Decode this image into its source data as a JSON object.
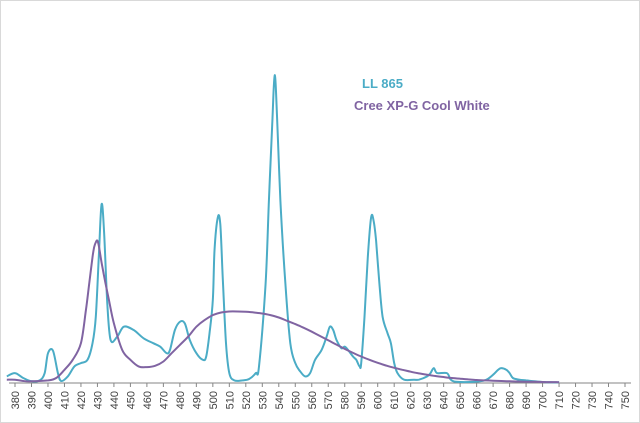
{
  "chart_data": {
    "type": "line",
    "title": "",
    "xlabel": "",
    "ylabel": "",
    "x": [
      380,
      390,
      400,
      410,
      420,
      430,
      440,
      450,
      460,
      470,
      480,
      490,
      500,
      510,
      520,
      530,
      540,
      550,
      560,
      570,
      580,
      590,
      600,
      610,
      620,
      630,
      640,
      650,
      660,
      670,
      680,
      690,
      700,
      710,
      720,
      730,
      740,
      750
    ],
    "xlim": [
      380,
      750
    ],
    "ylim": [
      0,
      100
    ],
    "grid": false,
    "legend_position": "top-center",
    "series": [
      {
        "name": "LL 865",
        "color": "#4bacc6",
        "points": [
          [
            375,
            2
          ],
          [
            380,
            3
          ],
          [
            385,
            1.5
          ],
          [
            390,
            0.5
          ],
          [
            395,
            0.8
          ],
          [
            398,
            3
          ],
          [
            400,
            9
          ],
          [
            403,
            9.8
          ],
          [
            406,
            3
          ],
          [
            408,
            0.6
          ],
          [
            412,
            2
          ],
          [
            416,
            5
          ],
          [
            420,
            6
          ],
          [
            424,
            7
          ],
          [
            427,
            12
          ],
          [
            429,
            20
          ],
          [
            431,
            40
          ],
          [
            432.5,
            54
          ],
          [
            434,
            46
          ],
          [
            436,
            24
          ],
          [
            438,
            13
          ],
          [
            442,
            14
          ],
          [
            446,
            17
          ],
          [
            452,
            16
          ],
          [
            458,
            13.5
          ],
          [
            464,
            12
          ],
          [
            468,
            11
          ],
          [
            472,
            9
          ],
          [
            474,
            10
          ],
          [
            477,
            16
          ],
          [
            480,
            18.5
          ],
          [
            483,
            18
          ],
          [
            486,
            13
          ],
          [
            490,
            9
          ],
          [
            494,
            7
          ],
          [
            496,
            8
          ],
          [
            498,
            15
          ],
          [
            500,
            25
          ],
          [
            501,
            40
          ],
          [
            503,
            50
          ],
          [
            504.5,
            48
          ],
          [
            506,
            32
          ],
          [
            508,
            12
          ],
          [
            510,
            3
          ],
          [
            513,
            0.8
          ],
          [
            518,
            0.8
          ],
          [
            522,
            1.2
          ],
          [
            526,
            3
          ],
          [
            528,
            5
          ],
          [
            532,
            30
          ],
          [
            534,
            55
          ],
          [
            536,
            78
          ],
          [
            537.5,
            93
          ],
          [
            539,
            80
          ],
          [
            541,
            55
          ],
          [
            544,
            30
          ],
          [
            547,
            12
          ],
          [
            550,
            6
          ],
          [
            553,
            3.5
          ],
          [
            556,
            2
          ],
          [
            559,
            3
          ],
          [
            562,
            7
          ],
          [
            566,
            10
          ],
          [
            569,
            14
          ],
          [
            571,
            17
          ],
          [
            573,
            16
          ],
          [
            575,
            13
          ],
          [
            578,
            10.5
          ],
          [
            580,
            11
          ],
          [
            582,
            10
          ],
          [
            585,
            8
          ],
          [
            587,
            7
          ],
          [
            589,
            5
          ],
          [
            590,
            6
          ],
          [
            592,
            20
          ],
          [
            594,
            38
          ],
          [
            596,
            50
          ],
          [
            597.5,
            49
          ],
          [
            599,
            43
          ],
          [
            601,
            30
          ],
          [
            603,
            20
          ],
          [
            606,
            15
          ],
          [
            608,
            12
          ],
          [
            610,
            6
          ],
          [
            612,
            3
          ],
          [
            616,
            1
          ],
          [
            622,
            1
          ],
          [
            625,
            1
          ],
          [
            630,
            2
          ],
          [
            632,
            3
          ],
          [
            634,
            4.5
          ],
          [
            636,
            3
          ],
          [
            642,
            3
          ],
          [
            644,
            1.2
          ],
          [
            646,
            0.5
          ],
          [
            650,
            0.3
          ],
          [
            656,
            0.3
          ],
          [
            662,
            0.5
          ],
          [
            666,
            1
          ],
          [
            670,
            2.5
          ],
          [
            673,
            4
          ],
          [
            675,
            4.5
          ],
          [
            678,
            4
          ],
          [
            680,
            3
          ],
          [
            682,
            1.5
          ],
          [
            686,
            1
          ],
          [
            690,
            0.8
          ],
          [
            695,
            0.5
          ],
          [
            700,
            0.3
          ],
          [
            705,
            0.2
          ],
          [
            710,
            0.2
          ]
        ]
      },
      {
        "name": "Cree XP-G Cool White",
        "color": "#8064a2",
        "points": [
          [
            375,
            1
          ],
          [
            380,
            1
          ],
          [
            385,
            0.6
          ],
          [
            390,
            0.5
          ],
          [
            400,
            0.8
          ],
          [
            405,
            1.5
          ],
          [
            410,
            4
          ],
          [
            415,
            7
          ],
          [
            420,
            12
          ],
          [
            423,
            22
          ],
          [
            425,
            30
          ],
          [
            427,
            38
          ],
          [
            428,
            41
          ],
          [
            429,
            42.5
          ],
          [
            430,
            43
          ],
          [
            431,
            41
          ],
          [
            433,
            35
          ],
          [
            437,
            25
          ],
          [
            440,
            18
          ],
          [
            445,
            10
          ],
          [
            450,
            7
          ],
          [
            455,
            5
          ],
          [
            460,
            4.8
          ],
          [
            465,
            5.2
          ],
          [
            470,
            6.5
          ],
          [
            475,
            9
          ],
          [
            480,
            11.5
          ],
          [
            485,
            14
          ],
          [
            490,
            17
          ],
          [
            495,
            19
          ],
          [
            500,
            20.5
          ],
          [
            505,
            21.3
          ],
          [
            510,
            21.6
          ],
          [
            515,
            21.6
          ],
          [
            520,
            21.5
          ],
          [
            525,
            21.3
          ],
          [
            530,
            21
          ],
          [
            535,
            20.5
          ],
          [
            540,
            19.8
          ],
          [
            545,
            18.8
          ],
          [
            550,
            17.8
          ],
          [
            555,
            16.7
          ],
          [
            560,
            15.5
          ],
          [
            565,
            14.2
          ],
          [
            570,
            12.9
          ],
          [
            575,
            11.6
          ],
          [
            580,
            10.3
          ],
          [
            585,
            9.1
          ],
          [
            590,
            8
          ],
          [
            595,
            7
          ],
          [
            600,
            6.1
          ],
          [
            605,
            5.3
          ],
          [
            610,
            4.6
          ],
          [
            615,
            4
          ],
          [
            620,
            3.4
          ],
          [
            625,
            2.9
          ],
          [
            630,
            2.5
          ],
          [
            635,
            2.1
          ],
          [
            640,
            1.8
          ],
          [
            645,
            1.5
          ],
          [
            650,
            1.3
          ],
          [
            655,
            1.1
          ],
          [
            660,
            0.9
          ],
          [
            665,
            0.8
          ],
          [
            670,
            0.7
          ],
          [
            675,
            0.6
          ],
          [
            680,
            0.5
          ],
          [
            685,
            0.45
          ],
          [
            690,
            0.4
          ],
          [
            695,
            0.35
          ],
          [
            700,
            0.3
          ],
          [
            705,
            0.27
          ],
          [
            710,
            0.25
          ]
        ]
      }
    ]
  }
}
